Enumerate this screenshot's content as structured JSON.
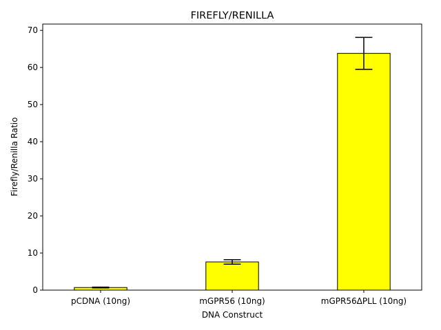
{
  "chart_data": {
    "type": "bar",
    "title": "FIREFLY/RENILLA",
    "xlabel": "DNA Construct",
    "ylabel": "Firefly/Renilla Ratio",
    "categories": [
      "pCDNA (10ng)",
      "mGPR56 (10ng)",
      "mGPR56ΔPLL (10ng)"
    ],
    "values": [
      0.7,
      7.6,
      63.8
    ],
    "errors": [
      0.1,
      0.6,
      4.3
    ],
    "ylim": [
      0,
      71.7
    ],
    "yticks": [
      0,
      10,
      20,
      30,
      40,
      50,
      60,
      70
    ],
    "grid": false,
    "legend": "none",
    "colors": {
      "bar_fill": "#ffff00",
      "bar_edge": "#000000",
      "error_bar": "#000000",
      "axes": "#000000",
      "background": "#ffffff"
    }
  }
}
